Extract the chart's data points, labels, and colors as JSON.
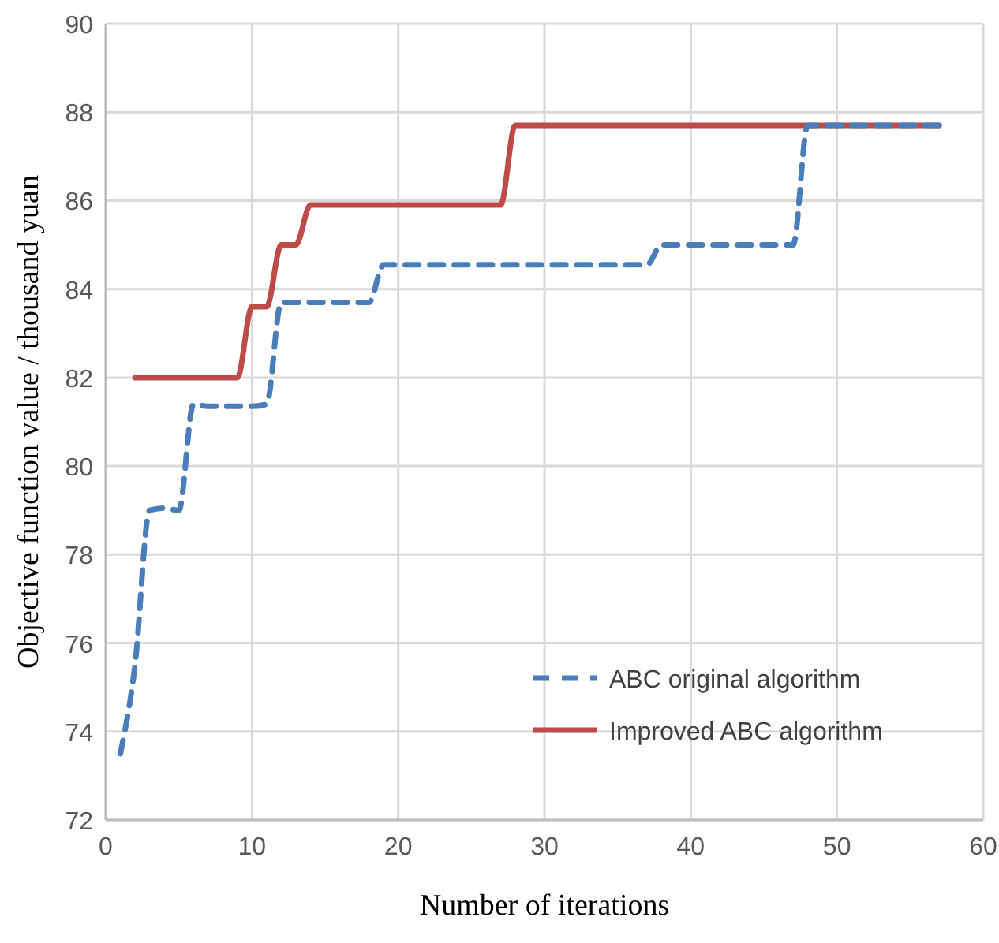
{
  "chart_data": {
    "type": "line",
    "xlabel": "Number of iterations",
    "ylabel": "Objective function value / thousand yuan",
    "xlim": [
      0,
      60
    ],
    "xticks": [
      0,
      10,
      20,
      30,
      40,
      50,
      60
    ],
    "ylim": [
      72,
      90
    ],
    "yticks": [
      72,
      74,
      76,
      78,
      80,
      82,
      84,
      86,
      88,
      90
    ],
    "grid": true,
    "legend": "bottom right",
    "marker": "none",
    "series": [
      {
        "name": "ABC original algorithm",
        "color": "#4a7ebb",
        "line_style": "dashed",
        "x": [
          1,
          2,
          3,
          4,
          5,
          6,
          7,
          8,
          9,
          10,
          11,
          12,
          13,
          18,
          19,
          20,
          37,
          38,
          39,
          47,
          48,
          49,
          57
        ],
        "values": [
          73.5,
          75.5,
          79,
          79.05,
          79,
          81.4,
          81.35,
          81.35,
          81.35,
          81.35,
          81.4,
          83.7,
          83.7,
          83.7,
          84.55,
          84.55,
          84.55,
          85,
          85,
          85,
          87.7,
          87.7,
          87.7
        ]
      },
      {
        "name": "Improved ABC algorithm",
        "color": "#be4b48",
        "line_style": "solid",
        "x": [
          2,
          3,
          8,
          9,
          10,
          11,
          12,
          13,
          14,
          15,
          27,
          28,
          29,
          57
        ],
        "values": [
          82,
          82,
          82,
          82,
          83.6,
          83.6,
          85,
          85,
          85.9,
          85.9,
          85.9,
          87.7,
          87.7,
          87.7
        ]
      }
    ]
  }
}
